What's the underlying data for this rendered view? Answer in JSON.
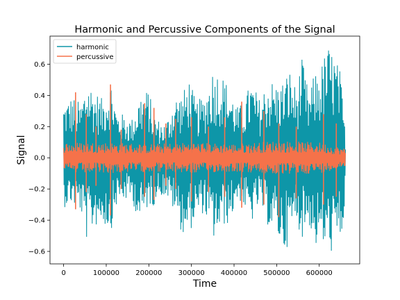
{
  "chart_data": {
    "type": "line",
    "title": "Harmonic and Percussive Components of the Signal",
    "xlabel": "Time",
    "ylabel": "Signal",
    "xlim": [
      -32000,
      695000
    ],
    "ylim": [
      -0.68,
      0.78
    ],
    "xticks": [
      0,
      100000,
      200000,
      300000,
      400000,
      500000,
      600000
    ],
    "xtick_labels": [
      "0",
      "100000",
      "200000",
      "300000",
      "400000",
      "500000",
      "600000"
    ],
    "yticks": [
      -0.6,
      -0.4,
      -0.2,
      0.0,
      0.2,
      0.4,
      0.6
    ],
    "ytick_labels": [
      "−0.6",
      "−0.4",
      "−0.2",
      "0.0",
      "0.2",
      "0.4",
      "0.6"
    ],
    "grid": false,
    "legend": {
      "position": "top-left"
    },
    "x_range": [
      0,
      661500
    ],
    "series": [
      {
        "name": "harmonic",
        "color": "#0e96a8",
        "envelope": {
          "x": [
            0,
            20000,
            40000,
            55000,
            70000,
            90000,
            110000,
            125000,
            140000,
            160000,
            180000,
            200000,
            210000,
            220000,
            240000,
            260000,
            280000,
            295000,
            310000,
            330000,
            350000,
            360000,
            370000,
            390000,
            410000,
            425000,
            440000,
            460000,
            480000,
            500000,
            515000,
            530000,
            545000,
            560000,
            575000,
            590000,
            605000,
            620000,
            635000,
            650000,
            661500
          ],
          "upper": [
            0.36,
            0.4,
            0.35,
            0.52,
            0.45,
            0.38,
            0.52,
            0.3,
            0.28,
            0.25,
            0.42,
            0.44,
            0.3,
            0.25,
            0.22,
            0.4,
            0.42,
            0.52,
            0.36,
            0.4,
            0.58,
            0.57,
            0.55,
            0.45,
            0.32,
            0.38,
            0.5,
            0.38,
            0.52,
            0.48,
            0.5,
            0.58,
            0.45,
            0.64,
            0.42,
            0.55,
            0.6,
            0.73,
            0.68,
            0.55,
            0.15
          ],
          "lower": [
            -0.32,
            -0.3,
            -0.35,
            -0.54,
            -0.45,
            -0.42,
            -0.48,
            -0.3,
            -0.28,
            -0.27,
            -0.44,
            -0.3,
            -0.32,
            -0.24,
            -0.25,
            -0.35,
            -0.5,
            -0.48,
            -0.4,
            -0.35,
            -0.53,
            -0.52,
            -0.45,
            -0.42,
            -0.26,
            -0.33,
            -0.43,
            -0.3,
            -0.44,
            -0.5,
            -0.61,
            -0.55,
            -0.4,
            -0.52,
            -0.42,
            -0.58,
            -0.56,
            -0.62,
            -0.6,
            -0.58,
            -0.3
          ]
        }
      },
      {
        "name": "percussive",
        "color": "#f5724a",
        "envelope": {
          "x": [
            0,
            100000,
            200000,
            300000,
            400000,
            500000,
            600000,
            661500
          ],
          "upper": [
            0.1,
            0.1,
            0.09,
            0.1,
            0.09,
            0.11,
            0.1,
            0.06
          ],
          "lower": [
            -0.1,
            -0.1,
            -0.09,
            -0.1,
            -0.09,
            -0.11,
            -0.1,
            -0.06
          ]
        },
        "spikes": [
          {
            "x": 28000,
            "min": -0.33,
            "max": 0.42
          },
          {
            "x": 53000,
            "min": -0.22,
            "max": 0.28
          },
          {
            "x": 76000,
            "min": -0.18,
            "max": 0.2
          },
          {
            "x": 110000,
            "min": -0.37,
            "max": 0.47
          },
          {
            "x": 135000,
            "min": -0.2,
            "max": 0.18
          },
          {
            "x": 190000,
            "min": -0.25,
            "max": 0.35
          },
          {
            "x": 212000,
            "min": -0.27,
            "max": 0.32
          },
          {
            "x": 240000,
            "min": -0.18,
            "max": 0.22
          },
          {
            "x": 263000,
            "min": -0.2,
            "max": 0.25
          },
          {
            "x": 300000,
            "min": -0.28,
            "max": 0.26
          },
          {
            "x": 340000,
            "min": -0.22,
            "max": 0.2
          },
          {
            "x": 378000,
            "min": -0.25,
            "max": 0.26
          },
          {
            "x": 418000,
            "min": -0.32,
            "max": 0.36
          },
          {
            "x": 470000,
            "min": -0.3,
            "max": 0.3
          },
          {
            "x": 505000,
            "min": -0.38,
            "max": 0.22
          },
          {
            "x": 546000,
            "min": -0.26,
            "max": 0.2
          },
          {
            "x": 610000,
            "min": -0.3,
            "max": 0.28
          },
          {
            "x": 640000,
            "min": -0.25,
            "max": 0.22
          }
        ]
      }
    ]
  }
}
